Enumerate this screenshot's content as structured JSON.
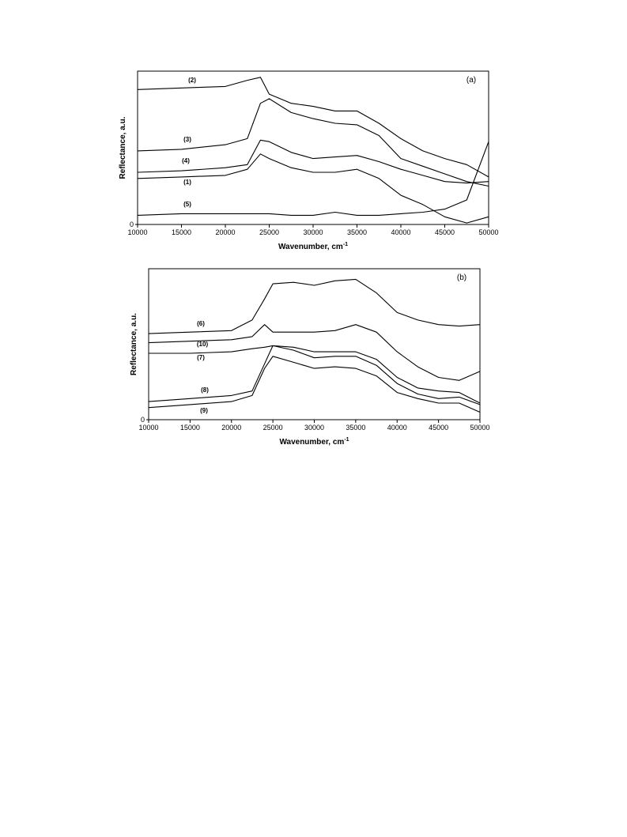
{
  "chart_data": [
    {
      "type": "line",
      "panel_label": "(a)",
      "xlabel": "Wavenumber, cm",
      "xlabel_superscript": "-1",
      "ylabel": "Reflectance, a.u.",
      "x": [
        10000,
        15000,
        20000,
        22500,
        24000,
        25000,
        27500,
        30000,
        32500,
        35000,
        37500,
        40000,
        42500,
        45000,
        47500,
        50000
      ],
      "xlim": [
        10000,
        50000
      ],
      "xticks": [
        10000,
        15000,
        20000,
        25000,
        30000,
        35000,
        40000,
        45000,
        50000
      ],
      "ylim": [
        0,
        100
      ],
      "yticks": [
        0
      ],
      "series": [
        {
          "name": "(2)",
          "color": "#000000",
          "values": [
            88,
            89,
            90,
            94,
            96,
            85,
            79,
            77,
            74,
            74,
            66,
            56,
            48,
            43,
            39,
            31
          ]
        },
        {
          "name": "(3)",
          "color": "#000000",
          "values": [
            48,
            49,
            52,
            56,
            79,
            82,
            73,
            69,
            66,
            65,
            58,
            43,
            38,
            33,
            28,
            25
          ]
        },
        {
          "name": "(4)",
          "color": "#000000",
          "values": [
            34,
            35,
            37,
            39,
            55,
            54,
            47,
            43,
            44,
            45,
            41,
            36,
            32,
            28,
            27,
            28
          ]
        },
        {
          "name": "(1)",
          "color": "#000000",
          "values": [
            30,
            31,
            32,
            36,
            46,
            43,
            37,
            34,
            34,
            36,
            30,
            19,
            13,
            5,
            1,
            5
          ]
        },
        {
          "name": "(5)",
          "color": "#000000",
          "values": [
            6,
            7,
            7,
            7,
            7,
            7,
            6,
            6,
            8,
            6,
            6,
            7,
            8,
            10,
            16,
            54
          ]
        }
      ]
    },
    {
      "type": "line",
      "panel_label": "(b)",
      "xlabel": "Wavenumber, cm",
      "xlabel_superscript": "-1",
      "ylabel": "Reflectance, a.u.",
      "x": [
        10000,
        15000,
        20000,
        22500,
        24000,
        25000,
        27500,
        30000,
        32500,
        35000,
        37500,
        40000,
        42500,
        45000,
        47500,
        50000
      ],
      "xlim": [
        10000,
        50000
      ],
      "xticks": [
        10000,
        15000,
        20000,
        25000,
        30000,
        35000,
        40000,
        45000,
        50000
      ],
      "ylim": [
        0,
        100
      ],
      "yticks": [
        0
      ],
      "series": [
        {
          "name": "(6)",
          "color": "#000000",
          "values": [
            57,
            58,
            59,
            66,
            80,
            90,
            91,
            89,
            92,
            93,
            84,
            71,
            66,
            63,
            62,
            63
          ]
        },
        {
          "name": "(10)",
          "color": "#000000",
          "values": [
            51,
            52,
            53,
            55,
            63,
            58,
            58,
            58,
            59,
            63,
            58,
            45,
            35,
            28,
            26,
            32
          ]
        },
        {
          "name": "(7)",
          "color": "#000000",
          "values": [
            44,
            44,
            45,
            47,
            48,
            49,
            48,
            45,
            45,
            45,
            40,
            28,
            21,
            19,
            18,
            11
          ]
        },
        {
          "name": "(8)",
          "color": "#000000",
          "values": [
            12,
            14,
            16,
            19,
            37,
            49,
            46,
            41,
            42,
            42,
            36,
            24,
            17,
            14,
            15,
            10
          ]
        },
        {
          "name": "(9)",
          "color": "#000000",
          "values": [
            8,
            10,
            12,
            16,
            34,
            42,
            38,
            34,
            35,
            34,
            29,
            18,
            14,
            11,
            11,
            5
          ]
        }
      ]
    }
  ]
}
